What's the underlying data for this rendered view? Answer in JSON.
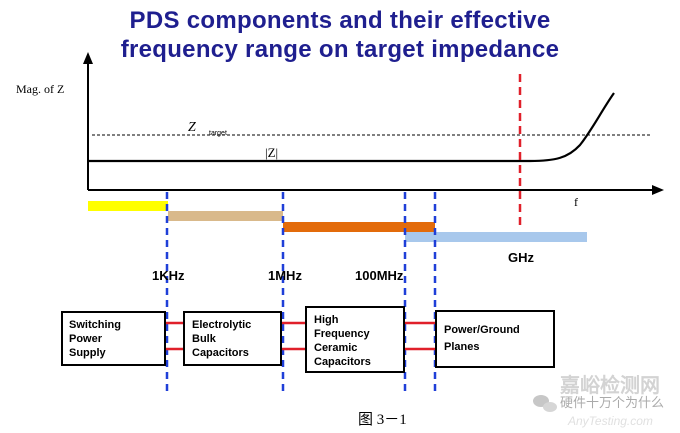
{
  "title": {
    "line1": "PDS components and their effective",
    "line2": "frequency range on target impedance"
  },
  "axes": {
    "ylabel": "Mag. of Z",
    "xlabel": "f"
  },
  "curves": {
    "target_label": "Z",
    "target_subscript": "target",
    "impedance_label": "|Z|"
  },
  "frequency_markers": [
    "1KHz",
    "1MHz",
    "100MHz",
    "GHz"
  ],
  "components": [
    "Switching\nPower\nSupply",
    "Electrolytic\nBulk\nCapacitors",
    "High\nFrequency\nCeramic\nCapacitors",
    "Power/Ground\nPlanes"
  ],
  "range_bar_colors": [
    "#ffff00",
    "#d9b98b",
    "#e36b0a",
    "#a8c8ec"
  ],
  "marker_color": "#1f3fd8",
  "limit_color": "#e0202a",
  "figure_caption": "图 3－1",
  "watermark": {
    "site_name": "嘉峪检测网",
    "site_url": "AnyTesting.com",
    "account": "硬件十万个为什么"
  }
}
